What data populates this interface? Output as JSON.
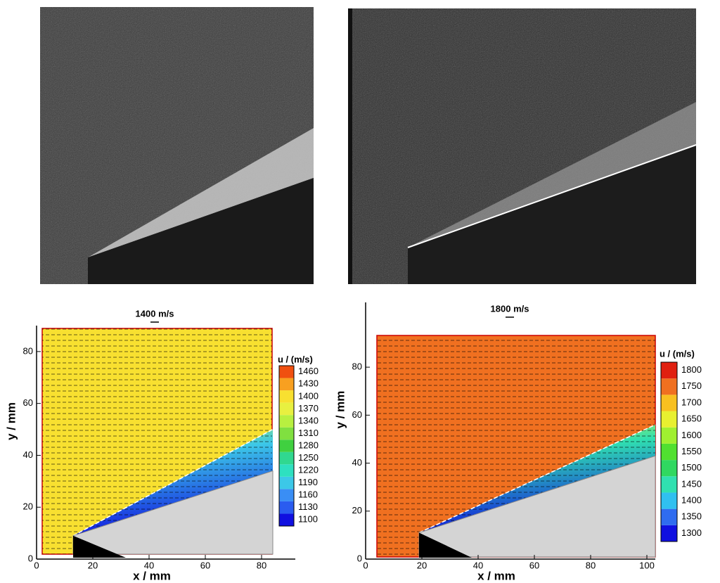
{
  "chart_data": [
    {
      "type": "contour",
      "title": "1400 m/s",
      "xlabel": "x / mm",
      "ylabel": "y / mm",
      "colorbar_label": "u / (m/s)",
      "xlim": [
        0,
        92
      ],
      "ylim": [
        0,
        90
      ],
      "xticks": [
        0,
        20,
        40,
        60,
        80
      ],
      "yticks": [
        0,
        20,
        40,
        60,
        80
      ],
      "levels": [
        1100,
        1130,
        1160,
        1190,
        1220,
        1250,
        1280,
        1310,
        1340,
        1370,
        1400,
        1430,
        1460
      ],
      "colors": [
        "#1010e0",
        "#2a5cf0",
        "#3a8ef5",
        "#3cc8e8",
        "#2ee0c0",
        "#30d890",
        "#40d040",
        "#80e040",
        "#b8f040",
        "#e8f040",
        "#f8e030",
        "#f8a020",
        "#f05010"
      ],
      "wedge": [
        [
          13,
          9
        ],
        [
          84,
          34
        ]
      ],
      "shock": [
        [
          13,
          9
        ],
        [
          84,
          50
        ]
      ]
    },
    {
      "type": "contour",
      "title": "1800 m/s",
      "xlabel": "x / mm",
      "ylabel": "y / mm",
      "colorbar_label": "u / (m/s)",
      "xlim": [
        0,
        103
      ],
      "ylim": [
        0,
        107
      ],
      "xticks": [
        0,
        20,
        40,
        60,
        80,
        100
      ],
      "yticks": [
        0,
        20,
        40,
        60,
        80
      ],
      "levels": [
        1300,
        1350,
        1400,
        1450,
        1500,
        1550,
        1600,
        1650,
        1700,
        1750,
        1800
      ],
      "colors": [
        "#1010e0",
        "#2f6cf0",
        "#30c0f0",
        "#30e0b0",
        "#30d860",
        "#50e030",
        "#a0f030",
        "#e8f030",
        "#f8c020",
        "#f07020",
        "#e02010"
      ],
      "wedge": [
        [
          19,
          11
        ],
        [
          103,
          43
        ]
      ],
      "shock": [
        [
          19,
          11
        ],
        [
          103,
          56
        ]
      ]
    }
  ]
}
